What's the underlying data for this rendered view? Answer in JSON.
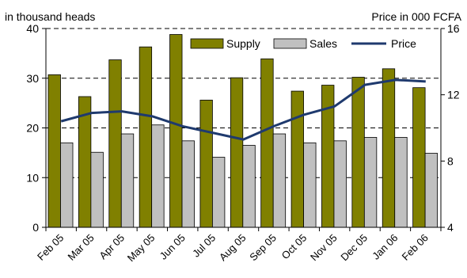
{
  "chart_data": {
    "type": "bar",
    "categories": [
      "Feb 05",
      "Mar 05",
      "Apr 05",
      "May 05",
      "Jun 05",
      "Jul 05",
      "Aug 05",
      "Sep 05",
      "Oct 05",
      "Nov 05",
      "Dec 05",
      "Jan 06",
      "Feb 06"
    ],
    "left_axis": {
      "label": "in thousand heads",
      "min": 0,
      "max": 40,
      "ticks": [
        0,
        10,
        20,
        30,
        40
      ]
    },
    "right_axis": {
      "label": "Price in 000 FCFA",
      "min": 4,
      "max": 16,
      "ticks": [
        4,
        8,
        12,
        16
      ]
    },
    "series": [
      {
        "name": "Supply",
        "type": "bar",
        "axis": "left",
        "color": "#808000",
        "values": [
          30.7,
          26.3,
          33.7,
          36.3,
          38.8,
          25.6,
          30.1,
          33.9,
          27.4,
          28.6,
          30.2,
          31.9,
          28.1
        ]
      },
      {
        "name": "Sales",
        "type": "bar",
        "axis": "left",
        "color": "#c0c0c0",
        "values": [
          17.0,
          15.1,
          18.8,
          20.6,
          17.4,
          14.1,
          16.5,
          18.8,
          17.0,
          17.4,
          18.1,
          18.1,
          14.9
        ]
      },
      {
        "name": "Price",
        "type": "line",
        "axis": "right",
        "color": "#1f3a6e",
        "values": [
          10.4,
          10.9,
          11.0,
          10.7,
          10.1,
          9.7,
          9.3,
          10.1,
          10.8,
          11.3,
          12.6,
          12.9,
          12.8
        ]
      }
    ],
    "grid": {
      "horizontal": true,
      "style": "dashed"
    },
    "legend": {
      "position": "top-right",
      "entries": [
        "Supply",
        "Sales",
        "Price"
      ]
    }
  }
}
